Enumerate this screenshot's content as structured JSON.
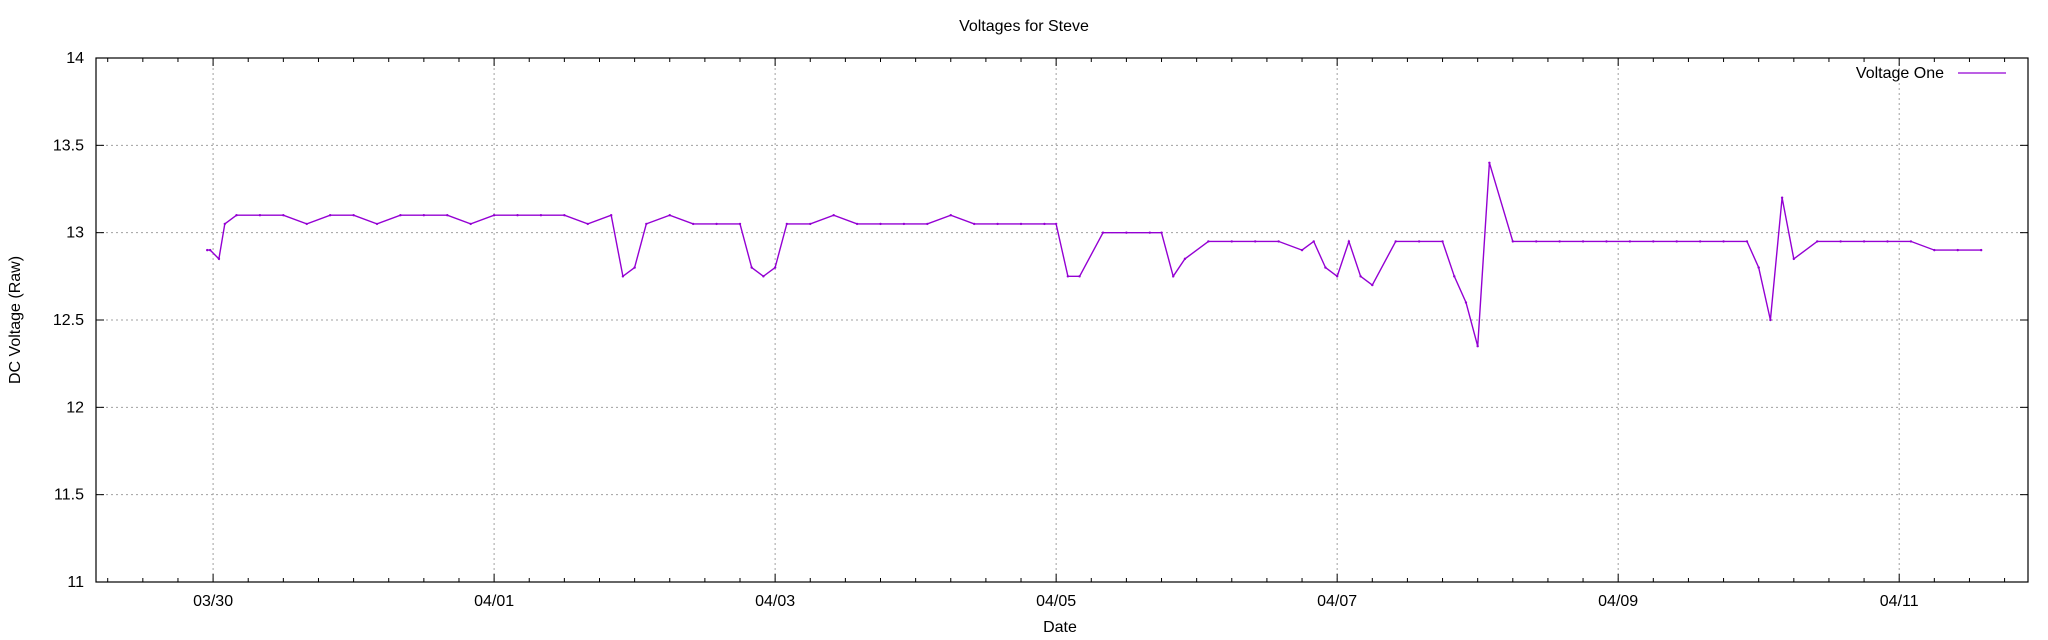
{
  "chart_data": {
    "type": "line",
    "title": "Voltages for Steve",
    "xlabel": "Date",
    "ylabel": "DC Voltage (Raw)",
    "x_range": [
      "03/29 04:00",
      "04/11 22:00"
    ],
    "ylim": [
      11,
      14
    ],
    "y_ticks": [
      11,
      11.5,
      12,
      12.5,
      13,
      13.5,
      14
    ],
    "x_ticks": [
      {
        "label": "03/30",
        "x": "03/30 00:00"
      },
      {
        "label": "04/01",
        "x": "04/01 00:00"
      },
      {
        "label": "04/03",
        "x": "04/03 00:00"
      },
      {
        "label": "04/05",
        "x": "04/05 00:00"
      },
      {
        "label": "04/07",
        "x": "04/07 00:00"
      },
      {
        "label": "04/09",
        "x": "04/09 00:00"
      },
      {
        "label": "04/11",
        "x": "04/11 00:00"
      }
    ],
    "grid": true,
    "legend_position": "top-right",
    "series": [
      {
        "name": "Voltage One",
        "color": "#9400d3",
        "x": [
          "03/29 23:00",
          "03/29 23:30",
          "03/30 01:00",
          "03/30 02:00",
          "03/30 04:00",
          "03/30 08:00",
          "03/30 12:00",
          "03/30 16:00",
          "03/30 20:00",
          "03/31 00:00",
          "03/31 04:00",
          "03/31 08:00",
          "03/31 12:00",
          "03/31 16:00",
          "03/31 20:00",
          "04/01 00:00",
          "04/01 04:00",
          "04/01 08:00",
          "04/01 12:00",
          "04/01 16:00",
          "04/01 20:00",
          "04/01 22:00",
          "04/02 00:00",
          "04/02 02:00",
          "04/02 06:00",
          "04/02 10:00",
          "04/02 14:00",
          "04/02 18:00",
          "04/02 20:00",
          "04/02 22:00",
          "04/03 00:00",
          "04/03 02:00",
          "04/03 06:00",
          "04/03 10:00",
          "04/03 14:00",
          "04/03 18:00",
          "04/03 22:00",
          "04/04 02:00",
          "04/04 06:00",
          "04/04 10:00",
          "04/04 14:00",
          "04/04 18:00",
          "04/04 22:00",
          "04/05 00:00",
          "04/05 02:00",
          "04/05 04:00",
          "04/05 08:00",
          "04/05 12:00",
          "04/05 16:00",
          "04/05 18:00",
          "04/05 20:00",
          "04/05 22:00",
          "04/06 02:00",
          "04/06 06:00",
          "04/06 10:00",
          "04/06 14:00",
          "04/06 18:00",
          "04/06 20:00",
          "04/06 22:00",
          "04/07 00:00",
          "04/07 02:00",
          "04/07 04:00",
          "04/07 06:00",
          "04/07 10:00",
          "04/07 14:00",
          "04/07 18:00",
          "04/07 20:00",
          "04/07 22:00",
          "04/08 00:00",
          "04/08 02:00",
          "04/08 06:00",
          "04/08 10:00",
          "04/08 14:00",
          "04/08 18:00",
          "04/08 22:00",
          "04/09 02:00",
          "04/09 06:00",
          "04/09 10:00",
          "04/09 14:00",
          "04/09 18:00",
          "04/09 22:00",
          "04/10 00:00",
          "04/10 02:00",
          "04/10 04:00",
          "04/10 06:00",
          "04/10 10:00",
          "04/10 14:00",
          "04/10 18:00",
          "04/10 22:00",
          "04/11 02:00",
          "04/11 06:00",
          "04/11 10:00",
          "04/11 14:00"
        ],
        "y": [
          12.9,
          12.9,
          12.85,
          13.05,
          13.1,
          13.1,
          13.1,
          13.05,
          13.1,
          13.1,
          13.05,
          13.1,
          13.1,
          13.1,
          13.05,
          13.1,
          13.1,
          13.1,
          13.1,
          13.05,
          13.1,
          12.75,
          12.8,
          13.05,
          13.1,
          13.05,
          13.05,
          13.05,
          12.8,
          12.75,
          12.8,
          13.05,
          13.05,
          13.1,
          13.05,
          13.05,
          13.05,
          13.05,
          13.1,
          13.05,
          13.05,
          13.05,
          13.05,
          13.05,
          12.75,
          12.75,
          13.0,
          13.0,
          13.0,
          13.0,
          12.75,
          12.85,
          12.95,
          12.95,
          12.95,
          12.95,
          12.9,
          12.95,
          12.8,
          12.75,
          12.95,
          12.75,
          12.7,
          12.95,
          12.95,
          12.95,
          12.75,
          12.6,
          12.35,
          13.4,
          12.95,
          12.95,
          12.95,
          12.95,
          12.95,
          12.95,
          12.95,
          12.95,
          12.95,
          12.95,
          12.95,
          12.8,
          12.5,
          13.2,
          12.85,
          12.95,
          12.95,
          12.95,
          12.95,
          12.95,
          12.9,
          12.9,
          12.9
        ]
      }
    ]
  }
}
